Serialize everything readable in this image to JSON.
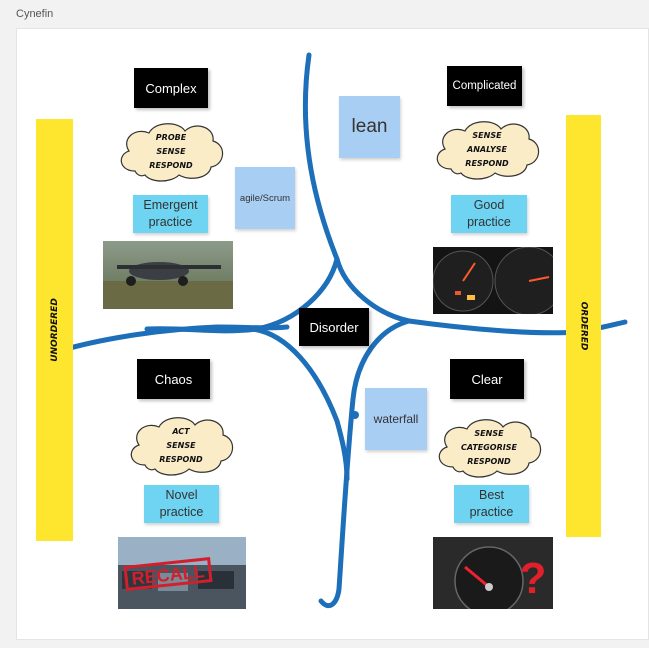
{
  "page_title": "Cynefin",
  "domains": {
    "complex": {
      "title": "Complex",
      "steps": [
        "PROBE",
        "SENSE",
        "RESPOND"
      ],
      "practice": [
        "Emergent",
        "practice"
      ]
    },
    "complicated": {
      "title": "Complicated",
      "steps": [
        "SENSE",
        "ANALYSE",
        "RESPOND"
      ],
      "practice": [
        "Good",
        "practice"
      ]
    },
    "chaos": {
      "title": "Chaos",
      "steps": [
        "ACT",
        "SENSE",
        "RESPOND"
      ],
      "practice": [
        "Novel",
        "practice"
      ]
    },
    "clear": {
      "title": "Clear",
      "steps": [
        "SENSE",
        "CATEGORISE",
        "RESPOND"
      ],
      "practice": [
        "Best",
        "practice"
      ]
    }
  },
  "center": {
    "title": "Disorder"
  },
  "notes": {
    "lean": "lean",
    "agile": "agile/Scrum",
    "waterfall": "waterfall"
  },
  "bars": {
    "left": "UNORDERED",
    "right": "ORDERED"
  },
  "images": {
    "complex": "flying-car photo",
    "complicated": "car dashboard gauges",
    "chaos": "RECALL stamped parking lot",
    "clear": "fuel gauge with question mark"
  },
  "image_text": {
    "recall": "RECALL",
    "question": "?"
  },
  "colors": {
    "curve": "#1c6fb8",
    "bar": "#ffe62e",
    "practice": "#6fd3f2",
    "note": "#a9cef4",
    "cloud": "#fbecc8"
  }
}
